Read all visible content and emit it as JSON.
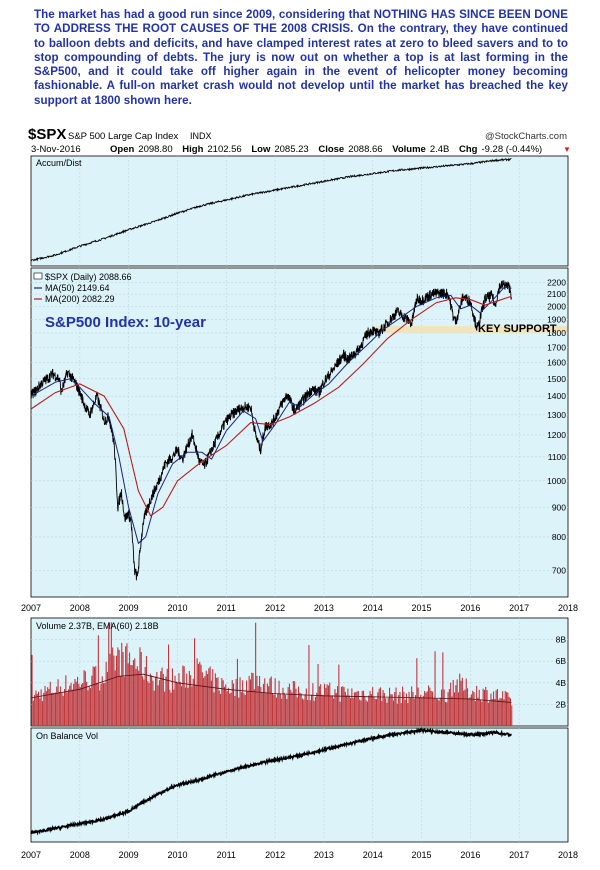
{
  "commentary": "The market has had a good run since 2009, considering that NOTHING HAS SINCE BEEN DONE TO ADDRESS THE ROOT CAUSES OF THE 2008 CRISIS. On the contrary, they have continued to balloon debts and deficits, and have clamped interest rates at zero to bleed savers and to to stop compounding of debts. The jury is now out on whether a top is at last forming in the S&P500, and it could take off higher again in the event of helicopter money becoming fashionable. A full-on market crash would not develop until the market has breached the key support at 1800 shown here.",
  "header": {
    "symbol": "$SPX",
    "name": "S&P 500 Large Cap Index",
    "exchange": "INDX",
    "credit": "@StockCharts.com",
    "date": "3-Nov-2016",
    "open_label": "Open",
    "open": "2098.80",
    "high_label": "High",
    "high": "2102.56",
    "low_label": "Low",
    "low": "2085.23",
    "close_label": "Close",
    "close": "2088.66",
    "volume_label": "Volume",
    "volume": "2.4B",
    "chg_label": "Chg",
    "chg": "-9.28 (-0.44%)"
  },
  "colors": {
    "panel_bg": "#dcf3fa",
    "price": "#000000",
    "ma50": "#1a237e",
    "ma200": "#b71c1c",
    "volume": "#c0373c",
    "support_band": "#f3e2b8",
    "commentary": "#2233a8"
  },
  "chart_data": [
    {
      "type": "line",
      "panel": "accum-dist",
      "title": "Accum/Dist",
      "x_range": [
        2007.0,
        2018.0
      ],
      "series": [
        {
          "name": "Accum/Dist",
          "x": [
            2007.0,
            2007.5,
            2008.0,
            2008.5,
            2009.0,
            2009.5,
            2010.0,
            2010.5,
            2011.0,
            2011.5,
            2012.0,
            2012.5,
            2013.0,
            2013.5,
            2014.0,
            2014.5,
            2015.0,
            2015.5,
            2016.0,
            2016.5,
            2016.84
          ],
          "values": [
            5,
            10,
            18,
            25,
            33,
            40,
            48,
            55,
            60,
            65,
            69,
            73,
            77,
            81,
            84,
            87,
            89,
            91,
            93,
            96,
            97
          ]
        }
      ]
    },
    {
      "type": "line",
      "panel": "price",
      "title": "S&P500 Index: 10-year",
      "y_scale": "log",
      "ylim": [
        630,
        2330
      ],
      "y_ticks": [
        700,
        800,
        900,
        1000,
        1100,
        1200,
        1300,
        1400,
        1500,
        1600,
        1700,
        1800,
        1900,
        2000,
        2100,
        2200
      ],
      "x_range": [
        2007.0,
        2018.0
      ],
      "x_ticks": [
        "2007",
        "2008",
        "2009",
        "2010",
        "2011",
        "2012",
        "2013",
        "2014",
        "2015",
        "2016",
        "2017",
        "2018"
      ],
      "legend": {
        "placement": "top-left",
        "entries": [
          "$SPX (Daily) 2088.66",
          "MA(50) 2149.64",
          "MA(200) 2082.29"
        ]
      },
      "annotation": {
        "label": "KEY SUPPORT",
        "level_low": 1800,
        "level_high": 1850,
        "x_start": 2014.0,
        "x_end": 2018.0
      },
      "series": [
        {
          "name": "$SPX (Daily)",
          "x": [
            2007.0,
            2007.1,
            2007.2,
            2007.33,
            2007.45,
            2007.58,
            2007.62,
            2007.75,
            2007.8,
            2007.9,
            2008.0,
            2008.1,
            2008.2,
            2008.35,
            2008.5,
            2008.6,
            2008.7,
            2008.78,
            2008.85,
            2008.92,
            2009.0,
            2009.05,
            2009.12,
            2009.18,
            2009.3,
            2009.45,
            2009.6,
            2009.75,
            2009.9,
            2010.0,
            2010.1,
            2010.3,
            2010.45,
            2010.55,
            2010.7,
            2010.85,
            2011.0,
            2011.2,
            2011.35,
            2011.5,
            2011.6,
            2011.7,
            2011.8,
            2011.95,
            2012.1,
            2012.25,
            2012.4,
            2012.55,
            2012.75,
            2012.9,
            2013.0,
            2013.2,
            2013.4,
            2013.5,
            2013.7,
            2013.9,
            2014.0,
            2014.1,
            2014.3,
            2014.5,
            2014.6,
            2014.8,
            2014.9,
            2015.0,
            2015.2,
            2015.4,
            2015.55,
            2015.65,
            2015.7,
            2015.85,
            2016.0,
            2016.1,
            2016.15,
            2016.3,
            2016.45,
            2016.5,
            2016.6,
            2016.7,
            2016.8,
            2016.84
          ],
          "values": [
            1410,
            1430,
            1470,
            1500,
            1530,
            1500,
            1420,
            1540,
            1520,
            1480,
            1420,
            1350,
            1300,
            1400,
            1270,
            1290,
            1160,
            900,
            960,
            860,
            880,
            850,
            700,
            680,
            850,
            930,
            990,
            1070,
            1100,
            1130,
            1090,
            1200,
            1080,
            1060,
            1130,
            1200,
            1270,
            1320,
            1340,
            1340,
            1200,
            1130,
            1240,
            1260,
            1340,
            1410,
            1320,
            1370,
            1440,
            1420,
            1480,
            1560,
            1650,
            1620,
            1680,
            1800,
            1820,
            1790,
            1870,
            1960,
            1930,
            1870,
            2060,
            2050,
            2100,
            2110,
            2100,
            1920,
            1880,
            2080,
            2040,
            1880,
            1830,
            2060,
            2090,
            2000,
            2170,
            2180,
            2160,
            2090
          ]
        },
        {
          "name": "MA(50)",
          "x": [
            2007.0,
            2007.5,
            2007.8,
            2008.0,
            2008.3,
            2008.6,
            2008.8,
            2009.0,
            2009.2,
            2009.35,
            2009.6,
            2009.9,
            2010.2,
            2010.5,
            2010.7,
            2011.0,
            2011.35,
            2011.6,
            2011.75,
            2012.0,
            2012.3,
            2012.5,
            2012.8,
            2013.1,
            2013.5,
            2013.9,
            2014.2,
            2014.6,
            2014.9,
            2015.3,
            2015.6,
            2015.8,
            2016.0,
            2016.2,
            2016.5,
            2016.7,
            2016.84
          ],
          "values": [
            1400,
            1480,
            1500,
            1450,
            1360,
            1290,
            1100,
            900,
            780,
            800,
            950,
            1070,
            1120,
            1120,
            1090,
            1220,
            1320,
            1280,
            1170,
            1250,
            1370,
            1340,
            1410,
            1470,
            1600,
            1720,
            1820,
            1920,
            2000,
            2070,
            2090,
            1980,
            2010,
            1950,
            2070,
            2160,
            2149.64
          ]
        },
        {
          "name": "MA(200)",
          "x": [
            2007.0,
            2007.5,
            2008.0,
            2008.5,
            2008.9,
            2009.2,
            2009.45,
            2009.7,
            2010.0,
            2010.5,
            2011.0,
            2011.5,
            2011.9,
            2012.3,
            2012.8,
            2013.3,
            2013.8,
            2014.3,
            2014.8,
            2015.3,
            2015.7,
            2016.0,
            2016.3,
            2016.6,
            2016.84
          ],
          "values": [
            1330,
            1420,
            1470,
            1400,
            1230,
            960,
            870,
            900,
            1000,
            1080,
            1150,
            1260,
            1250,
            1290,
            1360,
            1450,
            1590,
            1760,
            1900,
            2030,
            2070,
            2055,
            2010,
            2050,
            2082.29
          ]
        }
      ]
    },
    {
      "type": "bar",
      "panel": "volume",
      "title": "Volume 2.37B, EMA(60) 2.18B",
      "ylim": [
        0,
        10
      ],
      "y_ticks": [
        "2B",
        "4B",
        "6B",
        "8B"
      ],
      "x_range": [
        2007.0,
        2018.0
      ],
      "series": [
        {
          "name": "Volume",
          "x": [
            2007.0,
            2007.5,
            2008.0,
            2008.5,
            2008.75,
            2009.0,
            2009.25,
            2009.5,
            2010.0,
            2010.4,
            2010.8,
            2011.2,
            2011.6,
            2012.0,
            2012.5,
            2013.0,
            2013.5,
            2014.0,
            2014.5,
            2015.0,
            2015.5,
            2015.65,
            2016.0,
            2016.5,
            2016.84
          ],
          "values": [
            2.8,
            3.6,
            4.3,
            4.8,
            6.5,
            6.2,
            5.8,
            4.6,
            4.3,
            5.2,
            4.0,
            3.6,
            4.6,
            3.6,
            3.3,
            3.3,
            3.1,
            3.1,
            2.9,
            3.1,
            3.0,
            4.2,
            3.3,
            3.0,
            2.37
          ]
        },
        {
          "name": "EMA(60)",
          "x": [
            2007.0,
            2008.0,
            2008.8,
            2009.3,
            2010.0,
            2011.0,
            2012.0,
            2013.0,
            2014.0,
            2015.0,
            2016.0,
            2016.84
          ],
          "values": [
            2.6,
            3.4,
            4.6,
            4.8,
            4.0,
            3.4,
            3.0,
            2.8,
            2.7,
            2.6,
            2.5,
            2.18
          ]
        }
      ]
    },
    {
      "type": "line",
      "panel": "obv",
      "title": "On Balance Vol",
      "x_range": [
        2007.0,
        2018.0
      ],
      "x_ticks": [
        "2007",
        "2008",
        "2009",
        "2010",
        "2011",
        "2012",
        "2013",
        "2014",
        "2015",
        "2016",
        "2017",
        "2018"
      ],
      "series": [
        {
          "name": "On Balance Vol",
          "x": [
            2007.0,
            2007.5,
            2008.0,
            2008.5,
            2009.0,
            2009.3,
            2009.6,
            2010.0,
            2010.5,
            2011.0,
            2011.5,
            2012.0,
            2012.5,
            2013.0,
            2013.5,
            2014.0,
            2014.5,
            2015.0,
            2015.5,
            2016.0,
            2016.5,
            2016.84
          ],
          "values": [
            8,
            12,
            16,
            20,
            27,
            35,
            42,
            50,
            55,
            62,
            67,
            72,
            76,
            81,
            86,
            91,
            95,
            98,
            96,
            94,
            96,
            94
          ]
        }
      ]
    }
  ]
}
